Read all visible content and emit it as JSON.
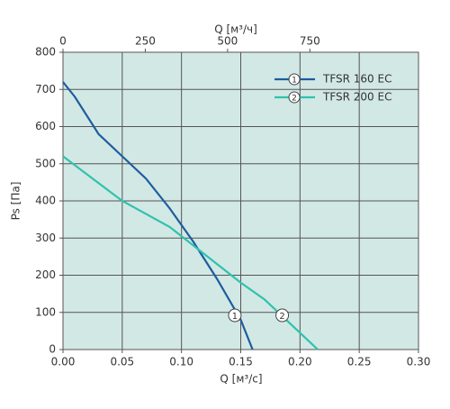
{
  "chart_data": {
    "type": "line",
    "x_label": "Q [м³/с]",
    "x2_label": "Q [м³/ч]",
    "y_label": "Ps [Па]",
    "xlim": [
      0,
      0.3
    ],
    "xticks": [
      {
        "value": 0,
        "label": "0.00"
      },
      {
        "value": 0.05,
        "label": "0.05"
      },
      {
        "value": 0.1,
        "label": "0.10"
      },
      {
        "value": 0.15,
        "label": "0.15"
      },
      {
        "value": 0.2,
        "label": "0.20"
      },
      {
        "value": 0.25,
        "label": "0.25"
      },
      {
        "value": 0.3,
        "label": "0.30"
      }
    ],
    "x2lim": [
      0,
      1080
    ],
    "x2ticks": [
      0,
      250,
      500,
      750
    ],
    "ylim": [
      0,
      800
    ],
    "yticks": [
      0,
      100,
      200,
      300,
      400,
      500,
      600,
      700,
      800
    ],
    "grid": true,
    "plot_background": "#d2e8e5",
    "legend": "top-right",
    "series": [
      {
        "name": "TFSR 160 EC",
        "color": "#1f5c9e",
        "x": [
          0,
          0.01,
          0.03,
          0.05,
          0.07,
          0.09,
          0.11,
          0.13,
          0.15,
          0.16
        ],
        "values": [
          720,
          680,
          580,
          520,
          460,
          380,
          290,
          190,
          80,
          0
        ],
        "marker": {
          "label": "1",
          "x": 0.145,
          "y": 92
        }
      },
      {
        "name": "TFSR 200 EC",
        "color": "#2fc2ad",
        "x": [
          0,
          0.05,
          0.07,
          0.09,
          0.11,
          0.13,
          0.15,
          0.17,
          0.19,
          0.215
        ],
        "values": [
          520,
          400,
          365,
          330,
          280,
          230,
          180,
          135,
          75,
          0
        ],
        "marker": {
          "label": "2",
          "x": 0.185,
          "y": 92
        }
      }
    ]
  }
}
